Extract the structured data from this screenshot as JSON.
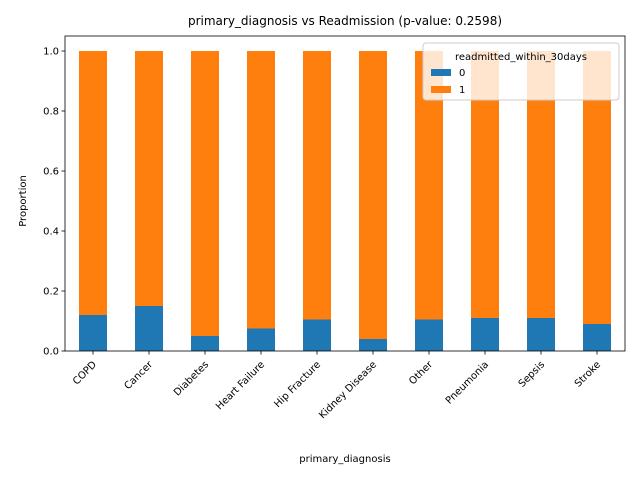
{
  "chart_data": {
    "type": "bar",
    "stacked": true,
    "title": "primary_diagnosis vs Readmission (p-value: 0.2598)",
    "xlabel": "primary_diagnosis",
    "ylabel": "Proportion",
    "ylim": [
      0,
      1.05
    ],
    "yticks": [
      "0.0",
      "0.2",
      "0.4",
      "0.6",
      "0.8",
      "1.0"
    ],
    "categories": [
      "COPD",
      "Cancer",
      "Diabetes",
      "Heart Failure",
      "Hip Fracture",
      "Kidney Disease",
      "Other",
      "Pneumonia",
      "Sepsis",
      "Stroke"
    ],
    "series": [
      {
        "name": "0",
        "color": "#1f77b4",
        "values": [
          0.12,
          0.15,
          0.05,
          0.075,
          0.105,
          0.04,
          0.105,
          0.11,
          0.11,
          0.09
        ]
      },
      {
        "name": "1",
        "color": "#ff7f0e",
        "values": [
          0.88,
          0.85,
          0.95,
          0.925,
          0.895,
          0.96,
          0.895,
          0.89,
          0.89,
          0.91
        ]
      }
    ],
    "legend": {
      "title": "readmitted_within_30days",
      "position": "top-right"
    },
    "grid": false
  }
}
